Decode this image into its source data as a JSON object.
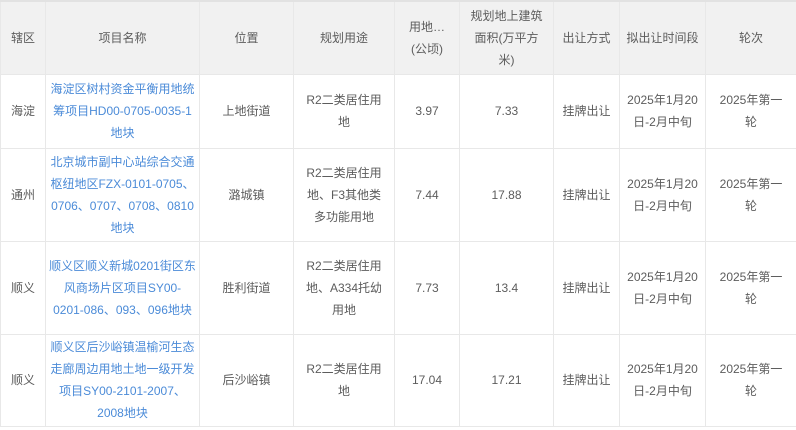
{
  "colors": {
    "link": "#4b8bd8",
    "header_bg": "#f1f1f1",
    "border": "#e8e8e8",
    "text": "#5c5c5c"
  },
  "table": {
    "header": [
      "辖区",
      "项目名称",
      "位置",
      "规划用途",
      "用地…\n(公顷)",
      "规划地上建筑面积(万平方米)",
      "出让方式",
      "拟出让时间段",
      "轮次"
    ],
    "rows": [
      [
        "海淀",
        "海淀区树村资金平衡用地统筹项目HD00-0705-0035-1地块",
        "上地街道",
        "R2二类居住用地",
        "3.97",
        "7.33",
        "挂牌出让",
        "2025年1月20日-2月中旬",
        "2025年第一轮"
      ],
      [
        "通州",
        "北京城市副中心站综合交通枢纽地区FZX-0101-0705、0706、0707、0708、0810地块",
        "潞城镇",
        "R2二类居住用地、F3其他类多功能用地",
        "7.44",
        "17.88",
        "挂牌出让",
        "2025年1月20日-2月中旬",
        "2025年第一轮"
      ],
      [
        "顺义",
        "顺义区顺义新城0201街区东风商场片区项目SY00-0201-086、093、096地块",
        "胜利街道",
        "R2二类居住用地、A334托幼用地",
        "7.73",
        "13.4",
        "挂牌出让",
        "2025年1月20日-2月中旬",
        "2025年第一轮"
      ],
      [
        "顺义",
        "顺义区后沙峪镇温榆河生态走廊周边用地土地一级开发项目SY00-2101-2007、2008地块",
        "后沙峪镇",
        "R2二类居住用地",
        "17.04",
        "17.21",
        "挂牌出让",
        "2025年1月20日-2月中旬",
        "2025年第一轮"
      ]
    ]
  }
}
